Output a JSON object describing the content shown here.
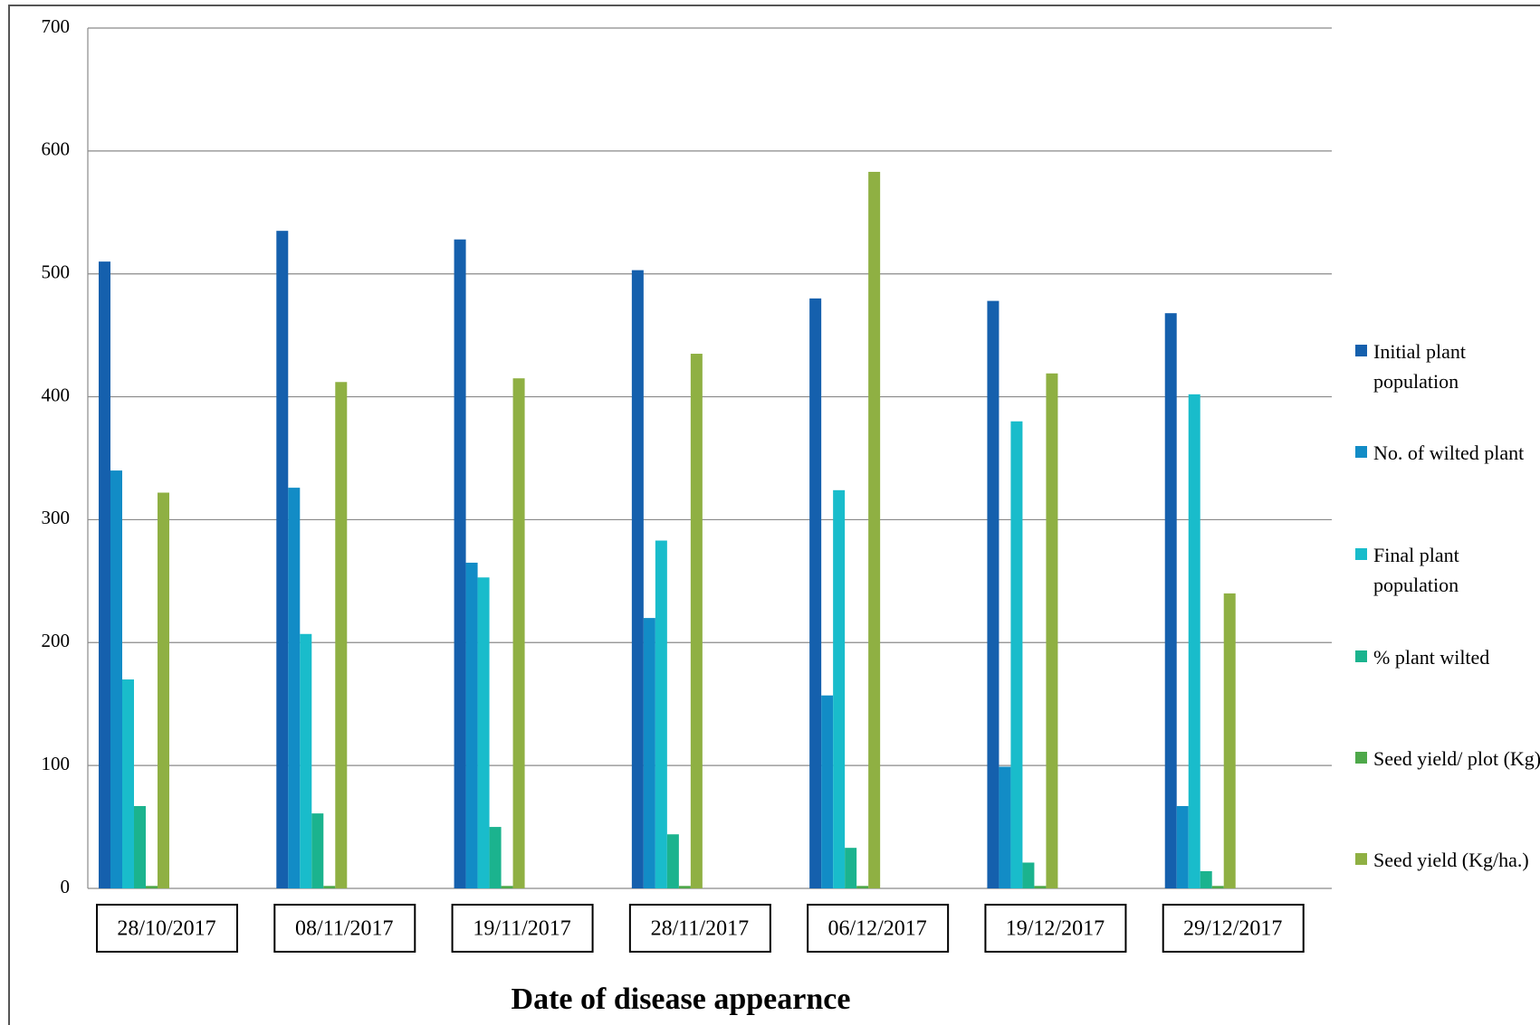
{
  "chart_data": {
    "type": "bar",
    "x_label": "Date of disease appearnce",
    "categories": [
      "28/10/2017",
      "08/11/2017",
      "19/11/2017",
      "28/11/2017",
      "06/12/2017",
      "19/12/2017",
      "29/12/2017"
    ],
    "series": [
      {
        "name": "Initial plant population",
        "color": "#1560ad",
        "values": [
          510,
          535,
          528,
          503,
          480,
          478,
          468
        ]
      },
      {
        "name": "No. of wilted plant",
        "color": "#128cc6",
        "values": [
          340,
          326,
          265,
          220,
          157,
          99,
          67
        ]
      },
      {
        "name": "Final plant population",
        "color": "#19bccb",
        "values": [
          170,
          207,
          253,
          283,
          324,
          380,
          402
        ]
      },
      {
        "name": "% plant wilted",
        "color": "#1bb38e",
        "values": [
          67,
          61,
          50,
          44,
          33,
          21,
          14
        ]
      },
      {
        "name": "Seed yield/ plot (Kg)",
        "color": "#4ea84a",
        "values": [
          2,
          2,
          2,
          2,
          2,
          2,
          2
        ]
      },
      {
        "name": "Seed yield (Kg/ha.)",
        "color": "#8fb043",
        "values": [
          322,
          412,
          415,
          435,
          583,
          419,
          240
        ]
      }
    ],
    "ylim": [
      0,
      700
    ],
    "yticks": [
      0,
      100,
      200,
      300,
      400,
      500,
      600,
      700
    ],
    "grid": true,
    "legend": "right"
  }
}
